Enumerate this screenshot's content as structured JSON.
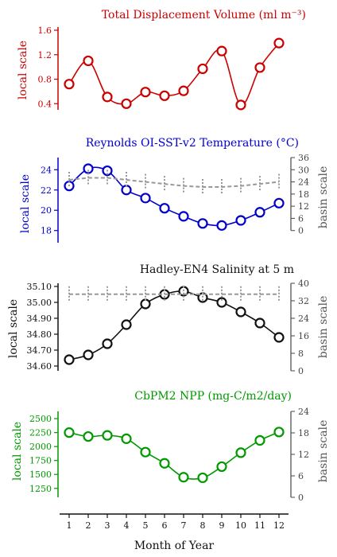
{
  "x_axis": {
    "label": "Month of Year",
    "ticks": [
      "1",
      "2",
      "3",
      "4",
      "5",
      "6",
      "7",
      "8",
      "9",
      "10",
      "11",
      "12"
    ]
  },
  "chart_data": [
    {
      "type": "line",
      "title": "Total Displacement Volume (ml m⁻³)",
      "color": "#cc0000",
      "ylabel": "local scale",
      "ylim": [
        0.3,
        1.6
      ],
      "yticks": [
        "0.4",
        "0.8",
        "1.2",
        "1.6"
      ],
      "x": [
        1,
        2,
        3,
        4,
        5,
        6,
        7,
        8,
        9,
        10,
        11,
        12
      ],
      "series": [
        {
          "values": [
            0.72,
            1.1,
            0.51,
            0.4,
            0.59,
            0.53,
            0.61,
            0.97,
            1.26,
            0.38,
            0.99,
            1.39
          ]
        }
      ]
    },
    {
      "type": "line",
      "title": "Reynolds OI-SST-v2 Temperature (°C)",
      "color": "#0000cc",
      "ylabel": "local scale",
      "y2label": "basin scale",
      "ylim": [
        16.8,
        25.2
      ],
      "yticks": [
        "18",
        "20",
        "22",
        "24"
      ],
      "y2lim": [
        -6,
        36
      ],
      "y2ticks": [
        "0",
        "6",
        "12",
        "18",
        "24",
        "30",
        "36"
      ],
      "x": [
        1,
        2,
        3,
        4,
        5,
        6,
        7,
        8,
        9,
        10,
        11,
        12
      ],
      "series": [
        {
          "values": [
            22.4,
            24.1,
            23.9,
            22.0,
            21.2,
            20.2,
            19.4,
            18.7,
            18.5,
            19.0,
            19.8,
            20.7
          ]
        },
        {
          "axis": "basin",
          "style": "dashed",
          "color": "#999999",
          "values": [
            25.0,
            26.0,
            26.0,
            25.0,
            24.0,
            23.0,
            22.0,
            21.5,
            21.5,
            22.0,
            23.0,
            24.0
          ]
        }
      ]
    },
    {
      "type": "line",
      "title": "Hadley-EN4 Salinity at 5 m",
      "color": "#111111",
      "ylabel": "local scale",
      "y2label": "basin scale",
      "ylim": [
        34.57,
        35.12
      ],
      "yticks": [
        "34.60",
        "34.70",
        "34.80",
        "34.90",
        "35.00",
        "35.10"
      ],
      "y2lim": [
        0,
        40
      ],
      "y2ticks": [
        "0",
        "8",
        "16",
        "24",
        "32",
        "40"
      ],
      "x": [
        1,
        2,
        3,
        4,
        5,
        6,
        7,
        8,
        9,
        10,
        11,
        12
      ],
      "series": [
        {
          "values": [
            34.64,
            34.67,
            34.74,
            34.86,
            34.99,
            35.05,
            35.07,
            35.03,
            35.0,
            34.94,
            34.87,
            34.78
          ]
        },
        {
          "axis": "basin",
          "style": "dashed",
          "color": "#999999",
          "values": [
            35,
            35,
            35,
            35,
            35,
            35,
            35,
            35,
            35,
            35,
            35,
            35
          ]
        }
      ]
    },
    {
      "type": "line",
      "title": "CbPM2 NPP (mg-C/m2/day)",
      "color": "#009900",
      "ylabel": "local scale",
      "y2label": "basin scale",
      "ylim": [
        1090,
        2630
      ],
      "yticks": [
        "1250",
        "1500",
        "1750",
        "2000",
        "2250",
        "2500"
      ],
      "y2lim": [
        0,
        24
      ],
      "y2ticks": [
        "0",
        "6",
        "12",
        "18",
        "24"
      ],
      "x": [
        1,
        2,
        3,
        4,
        5,
        6,
        7,
        8,
        9,
        10,
        11,
        12
      ],
      "series": [
        {
          "values": [
            2250,
            2180,
            2200,
            2140,
            1900,
            1700,
            1450,
            1440,
            1640,
            1890,
            2110,
            2260
          ]
        }
      ]
    }
  ]
}
